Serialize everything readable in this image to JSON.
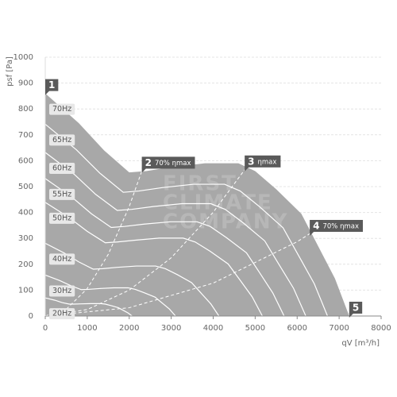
{
  "chart_data": {
    "type": "fan-curve",
    "ylabel": "psf [Pa]",
    "xlabel": "qV [m³/h]",
    "xlim": [
      0,
      8000
    ],
    "xticks": [
      0,
      1000,
      2000,
      3000,
      4000,
      5000,
      6000,
      7000,
      8000
    ],
    "ylim": [
      0,
      1000
    ],
    "yticks": [
      0,
      100,
      200,
      300,
      400,
      500,
      600,
      700,
      800,
      900,
      1000
    ],
    "grid": true,
    "area_color": "#a8a8a8",
    "line_color": "#ffffff",
    "marker_color": "#5a5a5a",
    "watermark": [
      "FIRST",
      "CLIMATE",
      "COMPANY"
    ],
    "series": [
      {
        "name": "70Hz",
        "fill": true,
        "x": [
          0,
          800,
          1400,
          2000,
          2400,
          3000,
          3800,
          4600,
          5000,
          5500,
          6100,
          6500,
          6900,
          7240
        ],
        "values": [
          860,
          745,
          640,
          555,
          560,
          575,
          590,
          590,
          560,
          490,
          395,
          270,
          145,
          0
        ]
      },
      {
        "name": "65Hz",
        "x": [
          0,
          743,
          1300,
          1857,
          2229,
          2786,
          3529,
          4271,
          4643,
          5107,
          5664,
          6036,
          6407,
          6723
        ],
        "values": [
          741,
          642,
          552,
          478,
          483,
          496,
          509,
          509,
          483,
          422,
          341,
          233,
          125,
          0
        ]
      },
      {
        "name": "60Hz",
        "x": [
          0,
          686,
          1200,
          1714,
          2057,
          2571,
          3257,
          3943,
          4286,
          4714,
          5229,
          5571,
          5914,
          6206
        ],
        "values": [
          632,
          548,
          470,
          408,
          412,
          423,
          434,
          434,
          412,
          360,
          290,
          198,
          107,
          0
        ]
      },
      {
        "name": "55Hz",
        "x": [
          0,
          629,
          1100,
          1571,
          1886,
          2357,
          2986,
          3614,
          3929,
          4321,
          4793,
          5107,
          5421,
          5689
        ],
        "values": [
          531,
          460,
          395,
          342,
          346,
          355,
          364,
          364,
          346,
          302,
          244,
          167,
          89,
          0
        ]
      },
      {
        "name": "50Hz",
        "x": [
          0,
          571,
          1000,
          1429,
          1714,
          2143,
          2714,
          3286,
          3571,
          3929,
          4357,
          4643,
          4929,
          5171
        ],
        "values": [
          439,
          380,
          327,
          283,
          286,
          293,
          301,
          301,
          286,
          250,
          201,
          138,
          74,
          0
        ]
      },
      {
        "name": "40Hz",
        "x": [
          0,
          457,
          800,
          1143,
          1371,
          1714,
          2171,
          2629,
          2857,
          3143,
          3486,
          3714,
          3943,
          4137
        ],
        "values": [
          281,
          243,
          209,
          181,
          183,
          188,
          193,
          193,
          183,
          160,
          129,
          88,
          47,
          0
        ]
      },
      {
        "name": "30Hz",
        "x": [
          0,
          343,
          600,
          857,
          1029,
          1286,
          1629,
          1971,
          2143,
          2357,
          2614,
          2786,
          2957,
          3103
        ],
        "values": [
          158,
          137,
          118,
          102,
          103,
          106,
          109,
          109,
          103,
          90,
          73,
          50,
          27,
          0
        ]
      },
      {
        "name": "20Hz",
        "x": [
          0,
          229,
          400,
          571,
          686,
          857,
          1086,
          1314,
          1429,
          1571,
          1743,
          1857,
          1971,
          2069
        ],
        "values": [
          70,
          61,
          52,
          46,
          46,
          47,
          48,
          48,
          46,
          40,
          32,
          22,
          12,
          0
        ]
      }
    ],
    "system_curves": [
      {
        "x": [
          0,
          500,
          1000,
          1500,
          2000,
          2300
        ],
        "values": [
          0,
          26,
          106,
          238,
          423,
          560
        ]
      },
      {
        "x": [
          0,
          1000,
          2000,
          3000,
          4000,
          4750
        ],
        "values": [
          0,
          25,
          100,
          225,
          401,
          565
        ]
      },
      {
        "x": [
          0,
          2000,
          4000,
          6000,
          7000
        ],
        "values": [
          0,
          32,
          127,
          287,
          390
        ]
      }
    ],
    "points": [
      {
        "label": "1",
        "x": 0,
        "y": 860
      },
      {
        "label": "2",
        "text": "70% ηmax",
        "x": 2300,
        "y": 560
      },
      {
        "label": "3",
        "text": "ηmax",
        "x": 4750,
        "y": 565
      },
      {
        "label": "4",
        "text": "70% ηmax",
        "x": 6300,
        "y": 316
      },
      {
        "label": "5",
        "x": 7240,
        "y": 0
      }
    ]
  }
}
